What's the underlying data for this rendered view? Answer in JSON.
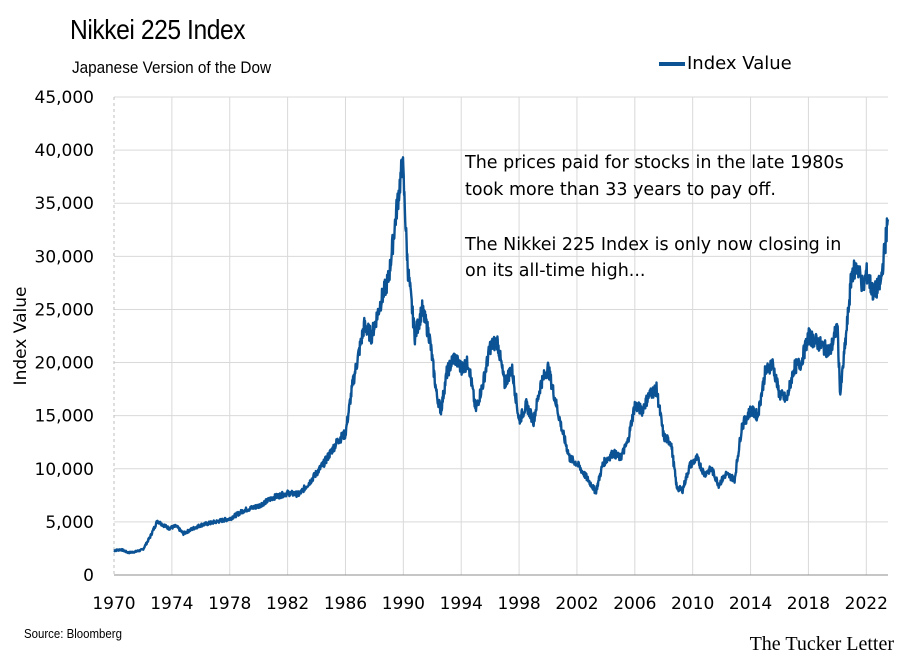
{
  "header": {
    "title": "Nikkei 225 Index",
    "subtitle": "Japanese Version of the Dow"
  },
  "footer": {
    "source": "Source: Bloomberg",
    "brand": "The Tucker Letter"
  },
  "colors": {
    "series": "#0b5394",
    "grid": "#d9d9d9"
  },
  "chart_data": {
    "type": "line",
    "ylabel": "Index Value",
    "xlabel": "",
    "xlim": [
      1970,
      2023.5
    ],
    "ylim": [
      0,
      45000
    ],
    "grid": true,
    "legend_placement": "top-right",
    "x_tick_labels": [
      "1970",
      "1974",
      "1978",
      "1982",
      "1986",
      "1990",
      "1994",
      "1998",
      "2002",
      "2006",
      "2010",
      "2014",
      "2018",
      "2022"
    ],
    "y_tick_labels": [
      "0",
      "5,000",
      "10,000",
      "15,000",
      "20,000",
      "25,000",
      "30,000",
      "35,000",
      "40,000",
      "45,000"
    ],
    "annotations": [
      "The prices paid for stocks in the late 1980s",
      "took more than 33 years to pay off.",
      "The Nikkei 225 Index is only now closing in",
      "on its all-time high..."
    ],
    "series": [
      {
        "name": "Index Value",
        "x": [
          1970,
          1970.5,
          1971,
          1971.5,
          1972,
          1972.5,
          1973,
          1973.3,
          1973.8,
          1974.3,
          1974.8,
          1975.5,
          1976,
          1977,
          1978,
          1979,
          1980,
          1981,
          1982,
          1982.8,
          1983.5,
          1984.5,
          1985.5,
          1986,
          1986.5,
          1987.3,
          1987.8,
          1988.5,
          1989,
          1989.5,
          1989.95,
          1990.3,
          1990.8,
          1991.3,
          1991.8,
          1992.3,
          1992.6,
          1993,
          1993.5,
          1994,
          1994.5,
          1995,
          1995.5,
          1996,
          1996.5,
          1997,
          1997.5,
          1998,
          1998.5,
          1999,
          1999.5,
          2000,
          2000.5,
          2001,
          2001.5,
          2002,
          2002.5,
          2003,
          2003.3,
          2003.8,
          2004.5,
          2005,
          2005.5,
          2006,
          2006.5,
          2007,
          2007.5,
          2008,
          2008.5,
          2008.9,
          2009.3,
          2009.8,
          2010.3,
          2010.8,
          2011.3,
          2011.8,
          2012.3,
          2012.9,
          2013.4,
          2014,
          2014.5,
          2015,
          2015.5,
          2016,
          2016.5,
          2017,
          2017.5,
          2018,
          2018.5,
          2019,
          2019.5,
          2020,
          2020.2,
          2020.6,
          2021,
          2021.4,
          2021.8,
          2022,
          2022.5,
          2023,
          2023.5
        ],
        "values": [
          2300,
          2400,
          2100,
          2200,
          2400,
          3600,
          5100,
          4800,
          4400,
          4600,
          3900,
          4400,
          4700,
          5000,
          5300,
          6100,
          6500,
          7300,
          7700,
          7600,
          8700,
          10500,
          12700,
          13300,
          18000,
          23500,
          22500,
          26000,
          28000,
          34000,
          38900,
          29000,
          22500,
          25000,
          22500,
          17000,
          15500,
          19000,
          20500,
          19500,
          20000,
          15500,
          18000,
          21500,
          22000,
          18000,
          19500,
          14500,
          16000,
          14500,
          18000,
          19500,
          16500,
          13500,
          11000,
          10500,
          9500,
          8500,
          7800,
          10500,
          11500,
          11000,
          12500,
          16000,
          15500,
          17000,
          17500,
          13000,
          12500,
          8200,
          8000,
          10300,
          11000,
          9500,
          10000,
          8500,
          9500,
          9000,
          14000,
          15500,
          15000,
          19000,
          20000,
          17000,
          16500,
          19500,
          20000,
          22500,
          22000,
          21500,
          21000,
          23500,
          17000,
          22500,
          28500,
          29000,
          27000,
          28500,
          26500,
          27500,
          33500
        ]
      }
    ]
  }
}
